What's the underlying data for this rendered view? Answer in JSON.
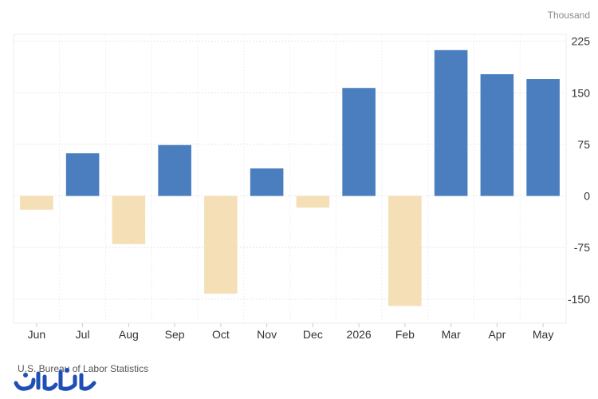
{
  "chart_data": {
    "type": "bar",
    "unit": "Thousand",
    "categories": [
      "Jun",
      "Jul",
      "Aug",
      "Sep",
      "Oct",
      "Nov",
      "Dec",
      "2026",
      "Feb",
      "Mar",
      "Apr",
      "May"
    ],
    "values": [
      -20,
      62,
      -70,
      74,
      -142,
      40,
      -17,
      157,
      -160,
      212,
      177,
      170
    ],
    "ylim": [
      -185,
      235
    ],
    "yticks": [
      225,
      150,
      75,
      0,
      -75,
      -150
    ],
    "ytick_labels": [
      "225",
      "150",
      "75",
      "0",
      "-75",
      "-150"
    ],
    "grid": true,
    "positive_color": "#4a7ebf",
    "negative_color": "#f5dfb6",
    "title": "",
    "xlabel": "",
    "ylabel": ""
  },
  "source": "U.S. Bureau of Labor Statistics",
  "logo_text": "یادداشت"
}
